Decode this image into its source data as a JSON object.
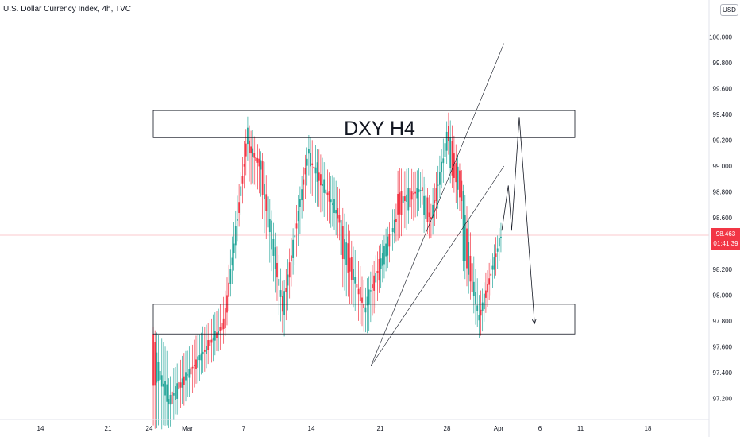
{
  "header": {
    "title": "U.S. Dollar Currency Index, 4h, TVC",
    "currency": "USD"
  },
  "price_badge": {
    "price": "98.463",
    "countdown": "01:41:39"
  },
  "colors": {
    "up": "#26a69a",
    "down": "#f23645",
    "price_line": "#f23645",
    "axis_text": "#131722"
  },
  "chart_data": {
    "type": "candlestick",
    "title": "U.S. Dollar Currency Index, 4h, TVC",
    "annotation": "DXY H4",
    "y_ticks": [
      "97.200",
      "97.400",
      "97.600",
      "97.800",
      "98.000",
      "98.200",
      "98.400",
      "98.600",
      "98.800",
      "99.000",
      "99.200",
      "99.400",
      "99.600",
      "99.800",
      "100.000"
    ],
    "x_ticks": [
      "14",
      "21",
      "24",
      "Mar",
      "7",
      "14",
      "21",
      "28",
      "Apr",
      "6",
      "11",
      "18"
    ],
    "ylim": [
      97.0,
      100.2
    ],
    "current_price": 98.463,
    "grid": false,
    "zones": [
      {
        "name": "resistance",
        "low": 99.22,
        "high": 99.43
      },
      {
        "name": "support",
        "low": 97.7,
        "high": 97.93
      }
    ],
    "segments": [
      {
        "t0": 0.0,
        "t1": 0.07,
        "o0": 97.3,
        "h0": 97.75,
        "l0": 97.0,
        "c0": 97.7,
        "o1": 97.35,
        "h1": 97.55,
        "l1": 97.0,
        "c1": 97.15
      },
      {
        "t0": 0.07,
        "t1": 0.33,
        "o0": 97.15,
        "h0": 97.35,
        "l0": 97.0,
        "c0": 97.2,
        "o1": 97.8,
        "h1": 97.95,
        "l1": 97.65,
        "c1": 97.75
      },
      {
        "t0": 0.33,
        "t1": 0.44,
        "o0": 97.75,
        "h0": 98.0,
        "l0": 97.7,
        "c0": 97.9,
        "o1": 99.25,
        "h1": 99.38,
        "l1": 99.05,
        "c1": 99.2
      },
      {
        "t0": 0.44,
        "t1": 0.5,
        "o0": 99.2,
        "h0": 99.3,
        "l0": 98.9,
        "c0": 99.1,
        "o1": 99.0,
        "h1": 99.1,
        "l1": 98.8,
        "c1": 99.0
      },
      {
        "t0": 0.5,
        "t1": 0.6,
        "o0": 99.0,
        "h0": 99.1,
        "l0": 98.6,
        "c0": 98.8,
        "o1": 97.95,
        "h1": 98.1,
        "l1": 97.72,
        "c1": 97.9
      },
      {
        "t0": 0.6,
        "t1": 0.72,
        "o0": 97.9,
        "h0": 98.1,
        "l0": 97.72,
        "c0": 98.0,
        "o1": 99.15,
        "h1": 99.22,
        "l1": 98.95,
        "c1": 99.1
      },
      {
        "t0": 0.72,
        "t1": 0.86,
        "o0": 99.1,
        "h0": 99.22,
        "l0": 98.8,
        "c0": 99.0,
        "o1": 98.6,
        "h1": 98.8,
        "l1": 98.45,
        "c1": 98.6
      },
      {
        "t0": 0.86,
        "t1": 0.98,
        "o0": 98.6,
        "h0": 98.7,
        "l0": 98.1,
        "c0": 98.3,
        "o1": 97.85,
        "h1": 98.05,
        "l1": 97.72,
        "c1": 97.9
      },
      {
        "t0": 0.98,
        "t1": 1.12,
        "o0": 97.9,
        "h0": 98.1,
        "l0": 97.72,
        "c0": 98.0,
        "o1": 98.55,
        "h1": 98.7,
        "l1": 98.45,
        "c1": 98.6
      },
      {
        "t0": 1.12,
        "t1": 1.24,
        "o0": 98.6,
        "h0": 98.95,
        "l0": 98.45,
        "c0": 98.8,
        "o1": 98.85,
        "h1": 98.95,
        "l1": 98.7,
        "c1": 98.8
      },
      {
        "t0": 1.24,
        "t1": 1.28,
        "o0": 98.8,
        "h0": 98.9,
        "l0": 98.5,
        "c0": 98.6,
        "o1": 98.6,
        "h1": 98.7,
        "l1": 98.45,
        "c1": 98.6
      },
      {
        "t0": 1.28,
        "t1": 1.36,
        "o0": 98.6,
        "h0": 98.8,
        "l0": 98.5,
        "c0": 98.7,
        "o1": 99.3,
        "h1": 99.38,
        "l1": 99.1,
        "c1": 99.2
      },
      {
        "t0": 1.36,
        "t1": 1.42,
        "o0": 99.2,
        "h0": 99.35,
        "l0": 98.9,
        "c0": 99.0,
        "o1": 98.85,
        "h1": 98.95,
        "l1": 98.6,
        "c1": 98.75
      },
      {
        "t0": 1.42,
        "t1": 1.5,
        "o0": 98.75,
        "h0": 98.85,
        "l0": 98.2,
        "c0": 98.3,
        "o1": 97.82,
        "h1": 98.0,
        "l1": 97.7,
        "c1": 97.82
      },
      {
        "t0": 1.5,
        "t1": 1.6,
        "o0": 97.82,
        "h0": 98.0,
        "l0": 97.7,
        "c0": 97.9,
        "o1": 98.45,
        "h1": 98.55,
        "l1": 98.35,
        "c1": 98.45
      }
    ],
    "channel_lines": [
      {
        "x0": 1.0,
        "y0": 97.45,
        "x1": 1.61,
        "y1": 99.95
      },
      {
        "x0": 1.0,
        "y0": 97.45,
        "x1": 1.61,
        "y1": 99.0
      }
    ],
    "projection": [
      {
        "x": 1.6,
        "y": 98.5
      },
      {
        "x": 1.63,
        "y": 98.85
      },
      {
        "x": 1.645,
        "y": 98.5
      },
      {
        "x": 1.68,
        "y": 99.38
      },
      {
        "x": 1.75,
        "y": 97.78
      }
    ]
  }
}
